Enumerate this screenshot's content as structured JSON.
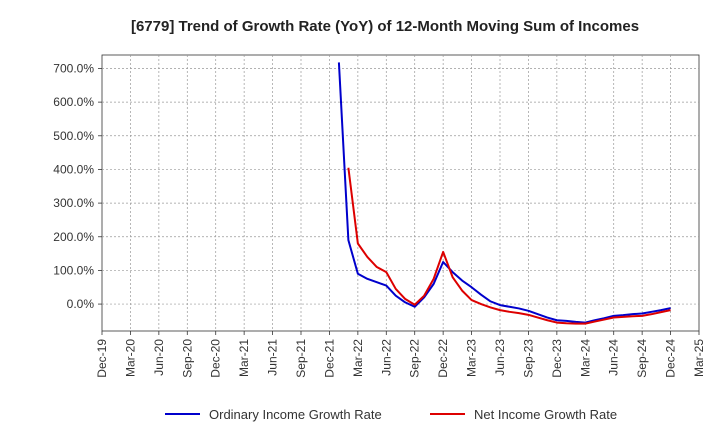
{
  "chart_data": {
    "type": "line",
    "title": "[6779]  Trend of Growth Rate (YoY) of 12-Month Moving Sum of Incomes",
    "xlabel": "",
    "ylabel": "",
    "x_ticks": [
      "Dec-19",
      "Mar-20",
      "Jun-20",
      "Sep-20",
      "Dec-20",
      "Mar-21",
      "Jun-21",
      "Sep-21",
      "Dec-21",
      "Mar-22",
      "Jun-22",
      "Sep-22",
      "Dec-22",
      "Mar-23",
      "Jun-23",
      "Sep-23",
      "Dec-23",
      "Mar-24",
      "Jun-24",
      "Sep-24",
      "Dec-24",
      "Mar-25"
    ],
    "y_ticks": [
      "700.0%",
      "600.0%",
      "500.0%",
      "400.0%",
      "300.0%",
      "200.0%",
      "100.0%",
      "0.0%"
    ],
    "y_tick_values": [
      700,
      600,
      500,
      400,
      300,
      200,
      100,
      0
    ],
    "ylim": [
      -80,
      740
    ],
    "grid": true,
    "legend_position": "bottom",
    "series": [
      {
        "name": "Ordinary Income Growth Rate",
        "color": "#0000cc",
        "x": [
          "2022-01",
          "2022-02",
          "2022-03",
          "2022-04",
          "2022-05",
          "2022-06",
          "2022-07",
          "2022-08",
          "2022-09",
          "2022-10",
          "2022-11",
          "2022-12",
          "2023-01",
          "2023-02",
          "2023-03",
          "2023-04",
          "2023-05",
          "2023-06",
          "2023-07",
          "2023-08",
          "2023-09",
          "2023-10",
          "2023-11",
          "2023-12",
          "2024-01",
          "2024-02",
          "2024-03",
          "2024-04",
          "2024-05",
          "2024-06",
          "2024-07",
          "2024-08",
          "2024-09",
          "2024-10",
          "2024-11",
          "2024-12"
        ],
        "values": [
          718,
          190,
          90,
          75,
          65,
          55,
          25,
          5,
          -8,
          20,
          60,
          125,
          95,
          70,
          50,
          28,
          8,
          -3,
          -8,
          -13,
          -20,
          -30,
          -40,
          -48,
          -50,
          -53,
          -55,
          -48,
          -42,
          -35,
          -33,
          -30,
          -28,
          -23,
          -18,
          -12
        ]
      },
      {
        "name": "Net Income Growth Rate",
        "color": "#dd0000",
        "x": [
          "2022-02",
          "2022-03",
          "2022-04",
          "2022-05",
          "2022-06",
          "2022-07",
          "2022-08",
          "2022-09",
          "2022-10",
          "2022-11",
          "2022-12",
          "2023-01",
          "2023-02",
          "2023-03",
          "2023-04",
          "2023-05",
          "2023-06",
          "2023-07",
          "2023-08",
          "2023-09",
          "2023-10",
          "2023-11",
          "2023-12",
          "2024-01",
          "2024-02",
          "2024-03",
          "2024-04",
          "2024-05",
          "2024-06",
          "2024-07",
          "2024-08",
          "2024-09",
          "2024-10",
          "2024-11",
          "2024-12"
        ],
        "values": [
          405,
          180,
          140,
          110,
          95,
          45,
          15,
          -2,
          25,
          75,
          155,
          80,
          40,
          12,
          0,
          -10,
          -18,
          -23,
          -27,
          -32,
          -40,
          -48,
          -55,
          -57,
          -58,
          -58,
          -52,
          -46,
          -40,
          -38,
          -36,
          -35,
          -30,
          -24,
          -18
        ]
      }
    ]
  }
}
